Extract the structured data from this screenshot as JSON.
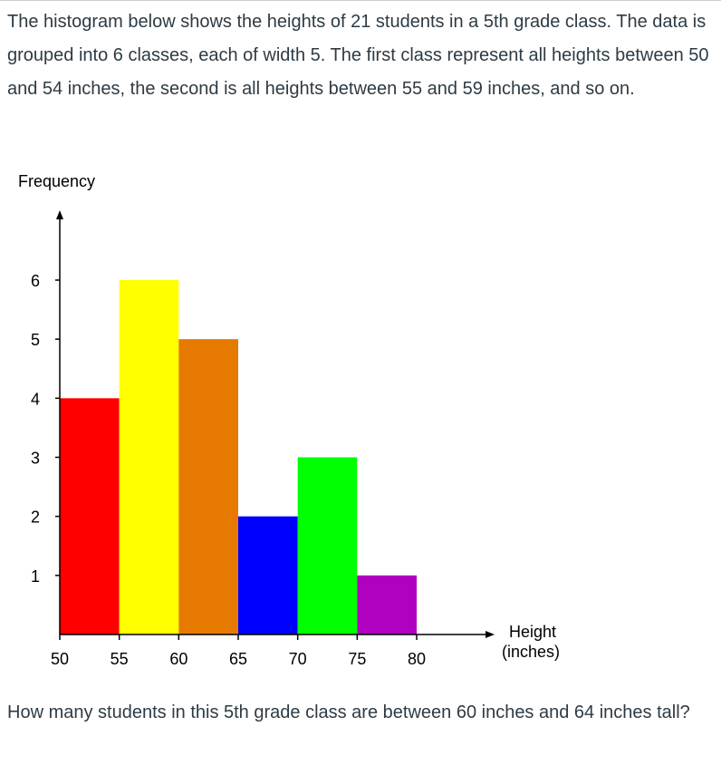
{
  "problem": {
    "intro": "The histogram below shows the heights of 21 students in a 5th grade class. The data is grouped into 6 classes, each of width 5. The first class represent all heights between 50 and 54 inches, the second is all heights between 55 and 59 inches, and so on.",
    "question": "How many students in this 5th grade class are between 60 inches and 64 inches tall?"
  },
  "chart_data": {
    "type": "bar",
    "ylabel": "Frequency",
    "xlabel_line1": "Height",
    "xlabel_line2": "(inches)",
    "x_ticks": [
      50,
      55,
      60,
      65,
      70,
      75,
      80
    ],
    "y_ticks": [
      1,
      2,
      3,
      4,
      5,
      6
    ],
    "xlim": [
      50,
      80
    ],
    "ylim": [
      0,
      6
    ],
    "bins": [
      {
        "start": 50,
        "end": 55,
        "value": 4,
        "color": "#ff0000"
      },
      {
        "start": 55,
        "end": 60,
        "value": 6,
        "color": "#ffff00"
      },
      {
        "start": 60,
        "end": 65,
        "value": 5,
        "color": "#e67a00"
      },
      {
        "start": 65,
        "end": 70,
        "value": 2,
        "color": "#0000ff"
      },
      {
        "start": 70,
        "end": 75,
        "value": 3,
        "color": "#00ff00"
      },
      {
        "start": 75,
        "end": 80,
        "value": 1,
        "color": "#b000c0"
      }
    ]
  }
}
